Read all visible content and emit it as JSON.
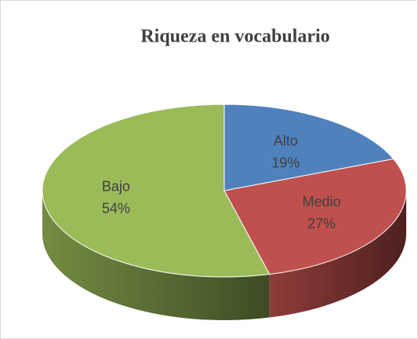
{
  "chart_data": {
    "type": "pie",
    "title": "Riqueza en vocabulario",
    "categories": [
      "Alto",
      "Medio",
      "Bajo"
    ],
    "values": [
      19,
      27,
      54
    ],
    "value_labels": [
      "19%",
      "27%",
      "54%"
    ],
    "colors": [
      "#4f81bd",
      "#c0504d",
      "#9bbb59"
    ]
  }
}
